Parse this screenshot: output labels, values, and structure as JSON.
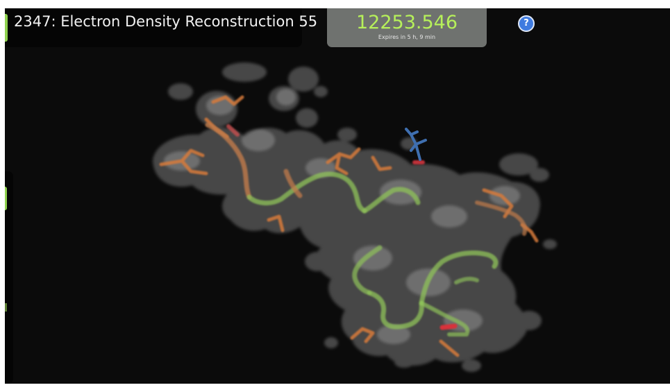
{
  "puzzle": {
    "title": "2347: Electron Density Reconstruction 55"
  },
  "score": {
    "value": "12253.546",
    "expiry": "Expires in 5 h, 9 min"
  },
  "help": {
    "icon": "help-icon",
    "glyph": "?"
  },
  "colors": {
    "background": "#0b0b0b",
    "density_cloud": "#9a9a9a",
    "backbone": "#8fc25a",
    "sidechain": "#d77a3a",
    "oxygen": "#d8323a",
    "nitrogen": "#3f6fb0",
    "score_text": "#b6f05a",
    "accent": "#8fd14f"
  }
}
